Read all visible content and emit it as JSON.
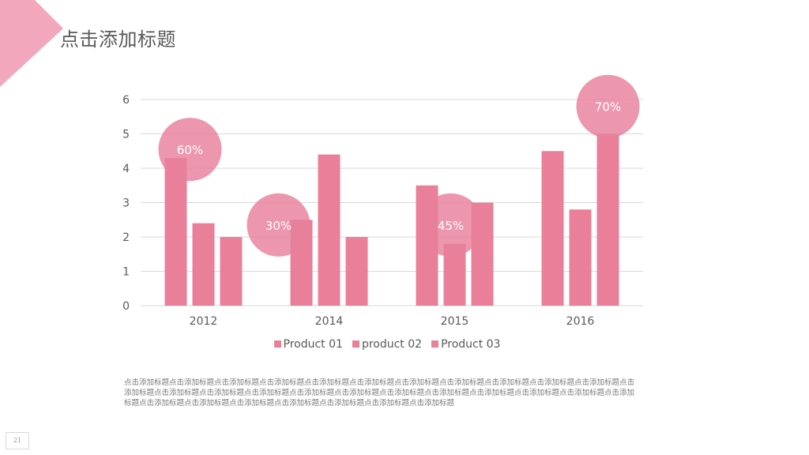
{
  "slide": {
    "title": "点击添加标题",
    "body_text": "点击添加标题点击添加标题点击添加标题点击添加标题点击添加标题点击添加标题点击添加标题点击添加标题点击添加标题点击添加标题点击添加标题点击添加标题点击添加标题点击添加标题点击添加标题点击添加标题点击添加标题点击添加标题点击添加标题点击添加标题点击添加标题点击添加标题点击添加标题点击添加标题点击添加标题点击添加标题点击添加标题点击添加标题点击添加标题点击添加标题",
    "page_number": "21"
  },
  "colors": {
    "accent": "#f2a7bd",
    "bar": "#ea7f99",
    "bubble": "#e8809b",
    "grid": "#d9d9d9",
    "axis_text": "#595959"
  },
  "chart_data": {
    "type": "bar",
    "categories": [
      "2012",
      "2014",
      "2015",
      "2016"
    ],
    "series": [
      {
        "name": "Product 01",
        "values": [
          4.3,
          2.5,
          3.5,
          4.5
        ]
      },
      {
        "name": "product 02",
        "values": [
          2.4,
          4.4,
          1.8,
          2.8
        ]
      },
      {
        "name": "Product 03",
        "values": [
          2.0,
          2.0,
          3.0,
          5.0
        ]
      }
    ],
    "ylim": [
      0,
      6
    ],
    "yticks": [
      0,
      1,
      2,
      3,
      4,
      5,
      6
    ],
    "grid": true,
    "legend_position": "bottom",
    "annotations": [
      {
        "label": "60%",
        "category": "2012",
        "value": 4.55
      },
      {
        "label": "30%",
        "category": "2014",
        "value": 2.35
      },
      {
        "label": "45%",
        "category": "2015",
        "value": 2.35
      },
      {
        "label": "70%",
        "category": "2016",
        "value": 5.8
      }
    ]
  }
}
